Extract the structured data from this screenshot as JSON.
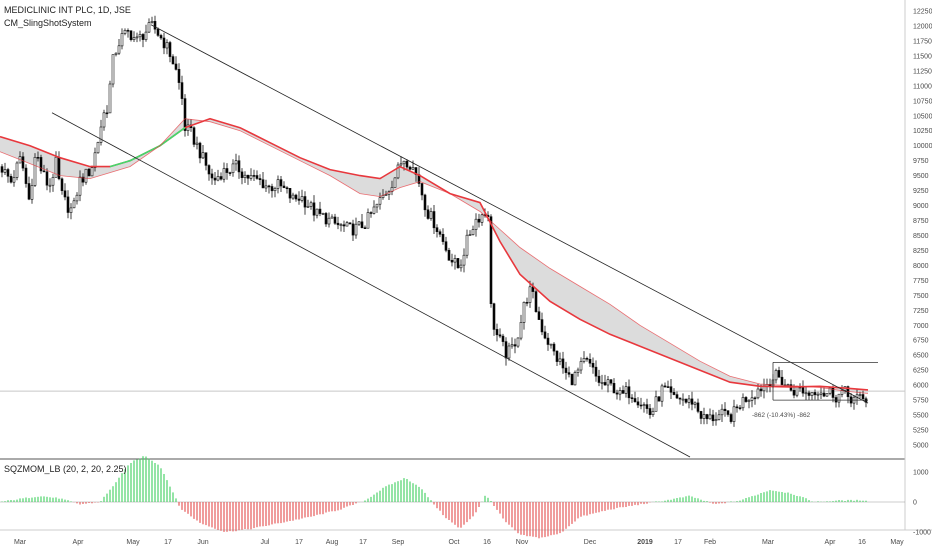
{
  "header": {
    "title": "MEDICLINIC INT PLC, 1D, JSE",
    "study": "CM_SlingShotSystem"
  },
  "indicator": {
    "title": "SQZMOM_LB (20, 2, 20, 2.25)"
  },
  "measure_label": "-862 (-10.43%) -862",
  "colors": {
    "up_candle": "#ffffff",
    "down_candle": "#000000",
    "ema_fast_red": "#e8383d",
    "ema_fast_green": "#43d96b",
    "ema_fill": "#d8d8d8",
    "hist_green": "#4ed36b",
    "hist_red": "#e55b5b",
    "trendline": "#222222"
  },
  "chart_data": [
    {
      "type": "candlestick",
      "x_ticks": [
        "Mar",
        "Apr",
        "May",
        "17",
        "Jun",
        "Jul",
        "17",
        "Aug",
        "17",
        "Sep",
        "Oct",
        "16",
        "Nov",
        "Dec",
        "2019",
        "17",
        "Feb",
        "Mar",
        "Apr",
        "16",
        "May"
      ],
      "y_ticks": [
        5000,
        5250,
        5500,
        5750,
        6000,
        6250,
        6500,
        6750,
        7000,
        7250,
        7500,
        7750,
        8000,
        8250,
        8500,
        8750,
        9000,
        9250,
        9500,
        9750,
        10000,
        10250,
        10500,
        10750,
        11000,
        11250,
        11500,
        11750,
        12000,
        12250
      ],
      "y_tick_labels": [
        "5000",
        "5250",
        "5500",
        "5750",
        "6000",
        "6250",
        "6500",
        "6750",
        "7000",
        "7250",
        "7500",
        "7750",
        "8000",
        "8250",
        "8500",
        "8750",
        "9000",
        "9250",
        "9500",
        "9750",
        "10000",
        "10250",
        "10500",
        "10750",
        "11000",
        "11250",
        "11500",
        "11750",
        "12000",
        "12250"
      ],
      "ylim": [
        4900,
        12350
      ],
      "close_path": [
        [
          0,
          9650
        ],
        [
          10,
          9400
        ],
        [
          20,
          9800
        ],
        [
          28,
          9100
        ],
        [
          35,
          9900
        ],
        [
          40,
          9600
        ],
        [
          48,
          9300
        ],
        [
          55,
          9700
        ],
        [
          60,
          9200
        ],
        [
          66,
          9000
        ],
        [
          72,
          8900
        ],
        [
          78,
          9400
        ],
        [
          84,
          9500
        ],
        [
          90,
          9600
        ],
        [
          96,
          10000
        ],
        [
          102,
          10500
        ],
        [
          108,
          10700
        ],
        [
          110,
          11300
        ],
        [
          115,
          11600
        ],
        [
          120,
          11800
        ],
        [
          128,
          11900
        ],
        [
          136,
          11750
        ],
        [
          144,
          11900
        ],
        [
          152,
          12000
        ],
        [
          158,
          11850
        ],
        [
          164,
          11700
        ],
        [
          170,
          11500
        ],
        [
          176,
          11200
        ],
        [
          182,
          10700
        ],
        [
          184,
          10300
        ],
        [
          190,
          10200
        ],
        [
          196,
          10000
        ],
        [
          204,
          9700
        ],
        [
          212,
          9400
        ],
        [
          220,
          9550
        ],
        [
          228,
          9600
        ],
        [
          236,
          9650
        ],
        [
          244,
          9500
        ],
        [
          252,
          9450
        ],
        [
          260,
          9400
        ],
        [
          268,
          9300
        ],
        [
          276,
          9350
        ],
        [
          284,
          9250
        ],
        [
          292,
          9100
        ],
        [
          300,
          9150
        ],
        [
          308,
          9000
        ],
        [
          316,
          8850
        ],
        [
          324,
          8800
        ],
        [
          332,
          8700
        ],
        [
          340,
          8650
        ],
        [
          348,
          8600
        ],
        [
          356,
          8620
        ],
        [
          364,
          8700
        ],
        [
          372,
          8900
        ],
        [
          380,
          9100
        ],
        [
          388,
          9300
        ],
        [
          396,
          9550
        ],
        [
          402,
          9800
        ],
        [
          410,
          9700
        ],
        [
          418,
          9400
        ],
        [
          426,
          8900
        ],
        [
          434,
          8700
        ],
        [
          442,
          8400
        ],
        [
          450,
          8100
        ],
        [
          458,
          7950
        ],
        [
          464,
          8300
        ],
        [
          470,
          8600
        ],
        [
          476,
          8800
        ],
        [
          482,
          8850
        ],
        [
          488,
          8900
        ],
        [
          490,
          7300
        ],
        [
          494,
          6900
        ],
        [
          500,
          6700
        ],
        [
          506,
          6500
        ],
        [
          512,
          6650
        ],
        [
          518,
          6900
        ],
        [
          524,
          7400
        ],
        [
          530,
          7600
        ],
        [
          536,
          7200
        ],
        [
          542,
          6900
        ],
        [
          548,
          6700
        ],
        [
          554,
          6500
        ],
        [
          560,
          6350
        ],
        [
          566,
          6150
        ],
        [
          572,
          6100
        ],
        [
          578,
          6250
        ],
        [
          584,
          6400
        ],
        [
          590,
          6300
        ],
        [
          596,
          6100
        ],
        [
          602,
          6000
        ],
        [
          608,
          6000
        ],
        [
          614,
          5950
        ],
        [
          620,
          5800
        ],
        [
          626,
          5900
        ],
        [
          632,
          5850
        ],
        [
          638,
          5750
        ],
        [
          644,
          5650
        ],
        [
          650,
          5500
        ],
        [
          656,
          5750
        ],
        [
          662,
          5950
        ],
        [
          668,
          5850
        ],
        [
          674,
          5750
        ],
        [
          680,
          5800
        ],
        [
          686,
          5700
        ],
        [
          692,
          5750
        ],
        [
          698,
          5550
        ],
        [
          704,
          5420
        ],
        [
          710,
          5450
        ],
        [
          716,
          5480
        ],
        [
          722,
          5500
        ],
        [
          728,
          5450
        ],
        [
          734,
          5550
        ],
        [
          740,
          5720
        ],
        [
          746,
          5800
        ],
        [
          752,
          5850
        ],
        [
          758,
          5950
        ],
        [
          764,
          6000
        ],
        [
          770,
          6100
        ],
        [
          776,
          6150
        ],
        [
          782,
          6050
        ],
        [
          788,
          5950
        ],
        [
          794,
          5900
        ],
        [
          800,
          5950
        ],
        [
          806,
          5850
        ],
        [
          812,
          5900
        ],
        [
          818,
          5950
        ],
        [
          824,
          5850
        ],
        [
          830,
          5900
        ],
        [
          836,
          5800
        ],
        [
          842,
          5900
        ],
        [
          848,
          5800
        ],
        [
          854,
          5780
        ],
        [
          860,
          5750
        ],
        [
          866,
          5760
        ]
      ],
      "ema_red": [
        [
          0,
          10150
        ],
        [
          30,
          10000
        ],
        [
          60,
          9800
        ],
        [
          90,
          9650
        ],
        [
          110,
          9650
        ],
        [
          130,
          9750
        ],
        [
          160,
          10000
        ],
        [
          185,
          10300
        ],
        [
          210,
          10450
        ],
        [
          240,
          10300
        ],
        [
          270,
          10050
        ],
        [
          300,
          9800
        ],
        [
          330,
          9600
        ],
        [
          360,
          9500
        ],
        [
          380,
          9450
        ],
        [
          400,
          9650
        ],
        [
          420,
          9500
        ],
        [
          450,
          9200
        ],
        [
          480,
          9050
        ],
        [
          500,
          8400
        ],
        [
          520,
          7850
        ],
        [
          550,
          7400
        ],
        [
          580,
          7100
        ],
        [
          610,
          6850
        ],
        [
          640,
          6650
        ],
        [
          670,
          6450
        ],
        [
          700,
          6250
        ],
        [
          730,
          6050
        ],
        [
          760,
          5980
        ],
        [
          790,
          5970
        ],
        [
          820,
          5980
        ],
        [
          845,
          5950
        ],
        [
          868,
          5920
        ]
      ],
      "ema_slow": [
        [
          0,
          9900
        ],
        [
          30,
          9700
        ],
        [
          60,
          9500
        ],
        [
          90,
          9450
        ],
        [
          110,
          9550
        ],
        [
          130,
          9650
        ],
        [
          160,
          10000
        ],
        [
          185,
          10450
        ],
        [
          210,
          10400
        ],
        [
          240,
          10250
        ],
        [
          270,
          10000
        ],
        [
          300,
          9750
        ],
        [
          330,
          9500
        ],
        [
          360,
          9200
        ],
        [
          380,
          9150
        ],
        [
          400,
          9300
        ],
        [
          420,
          9400
        ],
        [
          450,
          9200
        ],
        [
          480,
          8900
        ],
        [
          500,
          8600
        ],
        [
          520,
          8300
        ],
        [
          550,
          7950
        ],
        [
          580,
          7650
        ],
        [
          610,
          7350
        ],
        [
          640,
          7000
        ],
        [
          670,
          6700
        ],
        [
          700,
          6400
        ],
        [
          730,
          6150
        ],
        [
          760,
          6020
        ],
        [
          790,
          5990
        ],
        [
          820,
          5960
        ],
        [
          845,
          5900
        ],
        [
          868,
          5860
        ]
      ],
      "trend_upper": [
        [
          151,
          12020
        ],
        [
          868,
          5700
        ]
      ],
      "trend_lower": [
        [
          52,
          10550
        ],
        [
          690,
          4800
        ]
      ],
      "range_top": 6380,
      "range_bottom": 5750,
      "range_x": [
        773,
        878
      ],
      "horizontal_level": 5900
    },
    {
      "type": "bar",
      "name": "SQZMOM_LB",
      "y_ticks": [
        1000,
        0,
        -1000
      ],
      "y_tick_labels": [
        "1000",
        "0",
        "-1000"
      ],
      "ylim": [
        -1350,
        1550
      ],
      "hist_profile": [
        [
          0,
          0
        ],
        [
          15,
          80
        ],
        [
          40,
          200
        ],
        [
          60,
          120
        ],
        [
          80,
          -80
        ],
        [
          100,
          0
        ],
        [
          110,
          400
        ],
        [
          130,
          1300
        ],
        [
          145,
          1550
        ],
        [
          160,
          1200
        ],
        [
          172,
          400
        ],
        [
          180,
          -200
        ],
        [
          200,
          -700
        ],
        [
          225,
          -1000
        ],
        [
          250,
          -900
        ],
        [
          280,
          -700
        ],
        [
          310,
          -500
        ],
        [
          340,
          -250
        ],
        [
          365,
          50
        ],
        [
          385,
          500
        ],
        [
          405,
          800
        ],
        [
          420,
          500
        ],
        [
          432,
          0
        ],
        [
          445,
          -500
        ],
        [
          460,
          -900
        ],
        [
          475,
          -400
        ],
        [
          485,
          200
        ],
        [
          490,
          80
        ],
        [
          505,
          -650
        ],
        [
          520,
          -1100
        ],
        [
          540,
          -1200
        ],
        [
          560,
          -1050
        ],
        [
          580,
          -500
        ],
        [
          610,
          -250
        ],
        [
          640,
          -80
        ],
        [
          665,
          50
        ],
        [
          690,
          200
        ],
        [
          715,
          -80
        ],
        [
          740,
          50
        ],
        [
          770,
          400
        ],
        [
          790,
          300
        ],
        [
          815,
          0
        ],
        [
          840,
          50
        ],
        [
          868,
          60
        ]
      ]
    }
  ]
}
